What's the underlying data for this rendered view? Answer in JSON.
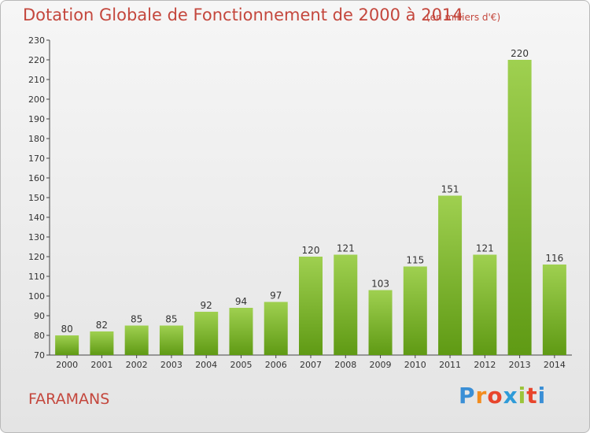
{
  "title": "Dotation Globale de Fonctionnement de 2000 à 2014",
  "subtitle": "(en milliers d'€)",
  "commune": "FARAMANS",
  "logo": {
    "letters": [
      "P",
      "r",
      "o",
      "x",
      "i",
      "t",
      "i"
    ],
    "colors": [
      "#3a8fd6",
      "#f28c1e",
      "#e8452c",
      "#2f9bd8",
      "#9bc43a",
      "#e8452c",
      "#3a8fd6"
    ]
  },
  "colors": {
    "bar_top": "#9fd050",
    "bar_bottom": "#5f9a14",
    "text": "#c4473d"
  },
  "chart_data": {
    "type": "bar",
    "title": "Dotation Globale de Fonctionnement de 2000 à 2014",
    "subtitle": "(en milliers d'€)",
    "xlabel": "",
    "ylabel": "",
    "categories": [
      "2000",
      "2001",
      "2002",
      "2003",
      "2004",
      "2005",
      "2006",
      "2007",
      "2008",
      "2009",
      "2010",
      "2011",
      "2012",
      "2013",
      "2014"
    ],
    "values": [
      80,
      82,
      85,
      85,
      92,
      94,
      97,
      120,
      121,
      103,
      115,
      151,
      121,
      220,
      116
    ],
    "ylim": [
      70,
      230
    ],
    "yticks": [
      70,
      80,
      90,
      100,
      110,
      120,
      130,
      140,
      150,
      160,
      170,
      180,
      190,
      200,
      210,
      220,
      230
    ],
    "grid": false,
    "legend": "none"
  }
}
